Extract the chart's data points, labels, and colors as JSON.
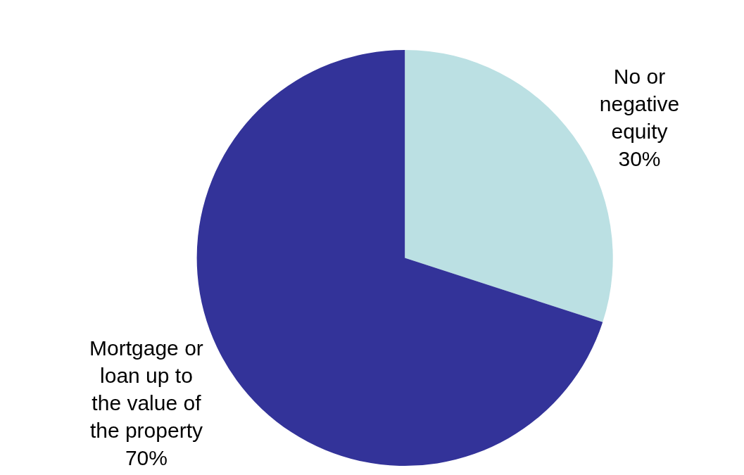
{
  "chart_data": {
    "type": "pie",
    "categories": [
      "No or negative equity",
      "Mortgage or loan up to the value of the property"
    ],
    "values": [
      30,
      70
    ],
    "colors": [
      "#bbe0e3",
      "#333399"
    ],
    "value_labels": [
      "30%",
      "70%"
    ],
    "legend": false
  }
}
